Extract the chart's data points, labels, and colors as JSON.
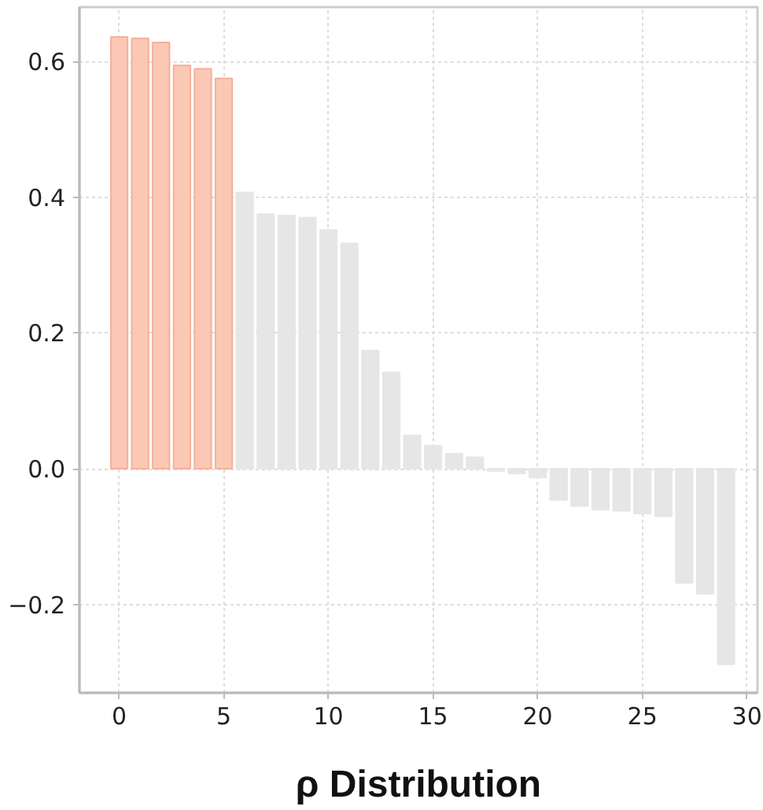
{
  "chart_data": {
    "type": "bar",
    "xlabel": "ρ Distribution",
    "x": [
      0,
      1,
      2,
      3,
      4,
      5,
      6,
      7,
      8,
      9,
      10,
      11,
      12,
      13,
      14,
      15,
      16,
      17,
      18,
      19,
      20,
      21,
      22,
      23,
      24,
      25,
      26,
      27,
      28,
      29
    ],
    "values": [
      0.636,
      0.634,
      0.628,
      0.594,
      0.589,
      0.575,
      0.407,
      0.375,
      0.373,
      0.37,
      0.352,
      0.332,
      0.174,
      0.142,
      0.049,
      0.034,
      0.022,
      0.017,
      -0.003,
      -0.007,
      -0.013,
      -0.046,
      -0.055,
      -0.06,
      -0.062,
      -0.066,
      -0.07,
      -0.168,
      -0.184,
      -0.288
    ],
    "colors": [
      "#fcc8b6",
      "#fcc8b6",
      "#fcc8b6",
      "#fcc8b6",
      "#fcc8b6",
      "#fcc8b6",
      "#e6e6e6",
      "#e6e6e6",
      "#e6e6e6",
      "#e6e6e6",
      "#e6e6e6",
      "#e6e6e6",
      "#e6e6e6",
      "#e6e6e6",
      "#e6e6e6",
      "#e6e6e6",
      "#e6e6e6",
      "#e6e6e6",
      "#e6e6e6",
      "#e6e6e6",
      "#e6e6e6",
      "#e6e6e6",
      "#e6e6e6",
      "#e6e6e6",
      "#e6e6e6",
      "#e6e6e6",
      "#e6e6e6",
      "#e6e6e6",
      "#e6e6e6",
      "#e6e6e6"
    ],
    "xlim": [
      -1.9,
      30.5
    ],
    "xticks": [
      0,
      5,
      10,
      15,
      20,
      25,
      30
    ],
    "ylim": [
      -0.33,
      0.68
    ],
    "yticks": [
      {
        "value": -0.2,
        "label": "−0.2"
      },
      {
        "value": 0.0,
        "label": "0.0"
      },
      {
        "value": 0.2,
        "label": "0.2"
      },
      {
        "value": 0.4,
        "label": "0.4"
      },
      {
        "value": 0.6,
        "label": "0.6"
      }
    ],
    "grid": true
  }
}
